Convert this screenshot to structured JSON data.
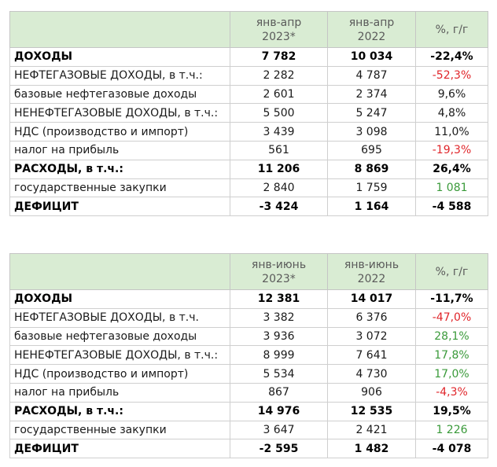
{
  "tables": [
    {
      "headers": {
        "label": "",
        "current": "янв-апр 2023*",
        "current_l1": "янв-апр",
        "current_l2": "2023*",
        "previous_l1": "янв-апр",
        "previous_l2": "2022",
        "change": "%, г/г"
      },
      "rows": [
        {
          "label": "ДОХОДЫ",
          "current": "7 782",
          "previous": "10 034",
          "change": "-22,4%",
          "bold": true,
          "tone": "neg"
        },
        {
          "label": "НЕФТЕГАЗОВЫЕ ДОХОДЫ, в т.ч.:",
          "current": "2 282",
          "previous": "4 787",
          "change": "-52,3%",
          "bold": false,
          "tone": "neg"
        },
        {
          "label": "базовые нефтегазовые доходы",
          "current": "2 601",
          "previous": "2 374",
          "change": "9,6%",
          "bold": false,
          "tone": "pos"
        },
        {
          "label": "НЕНЕФТЕГАЗОВЫЕ ДОХОДЫ, в т.ч.:",
          "current": "5 500",
          "previous": "5 247",
          "change": "4,8%",
          "bold": false,
          "tone": "pos"
        },
        {
          "label": "НДС (производство и импорт)",
          "current": "3 439",
          "previous": "3 098",
          "change": "11,0%",
          "bold": false,
          "tone": "pos"
        },
        {
          "label": "налог на прибыль",
          "current": "561",
          "previous": "695",
          "change": "-19,3%",
          "bold": false,
          "tone": "neg"
        },
        {
          "label": "РАСХОДЫ, в т.ч.:",
          "current": "11 206",
          "previous": "8 869",
          "change": "26,4%",
          "bold": true,
          "tone": "pos"
        },
        {
          "label": "государственные закупки",
          "current": "2 840",
          "previous": "1 759",
          "change": "1 081",
          "bold": false,
          "tone": "pos-g"
        },
        {
          "label": "ДЕФИЦИТ",
          "current": "-3 424",
          "previous": "1 164",
          "change": "-4 588",
          "bold": true,
          "tone": "neg"
        }
      ]
    },
    {
      "headers": {
        "label": "",
        "current_l1": "янв-июнь",
        "current_l2": "2023*",
        "previous_l1": "янв-июнь",
        "previous_l2": "2022",
        "change": "%, г/г"
      },
      "rows": [
        {
          "label": "ДОХОДЫ",
          "current": "12 381",
          "previous": "14 017",
          "change": "-11,7%",
          "bold": true,
          "tone": "neg"
        },
        {
          "label": "НЕФТЕГАЗОВЫЕ ДОХОДЫ, в т.ч.",
          "current": "3 382",
          "previous": "6 376",
          "change": "-47,0%",
          "bold": false,
          "tone": "neg"
        },
        {
          "label": "базовые нефтегазовые доходы",
          "current": "3 936",
          "previous": "3 072",
          "change": "28,1%",
          "bold": false,
          "tone": "pos-g"
        },
        {
          "label": "НЕНЕФТЕГАЗОВЫЕ ДОХОДЫ, в т.ч.:",
          "current": "8 999",
          "previous": "7 641",
          "change": "17,8%",
          "bold": false,
          "tone": "pos-g"
        },
        {
          "label": "НДС (производство и импорт)",
          "current": "5 534",
          "previous": "4 730",
          "change": "17,0%",
          "bold": false,
          "tone": "pos-g"
        },
        {
          "label": "налог на прибыль",
          "current": "867",
          "previous": "906",
          "change": "-4,3%",
          "bold": false,
          "tone": "neg"
        },
        {
          "label": "РАСХОДЫ, в т.ч.:",
          "current": "14 976",
          "previous": "12 535",
          "change": "19,5%",
          "bold": true,
          "tone": "pos"
        },
        {
          "label": "государственные закупки",
          "current": "3 647",
          "previous": "2 421",
          "change": "1 226",
          "bold": false,
          "tone": "pos-g"
        },
        {
          "label": "ДЕФИЦИТ",
          "current": "-2 595",
          "previous": "1 482",
          "change": "-4 078",
          "bold": true,
          "tone": "neg"
        }
      ]
    }
  ],
  "colors": {
    "header_bg": "#d9ecd3",
    "negative": "#e0262b",
    "positive_green": "#3a9a3a"
  }
}
